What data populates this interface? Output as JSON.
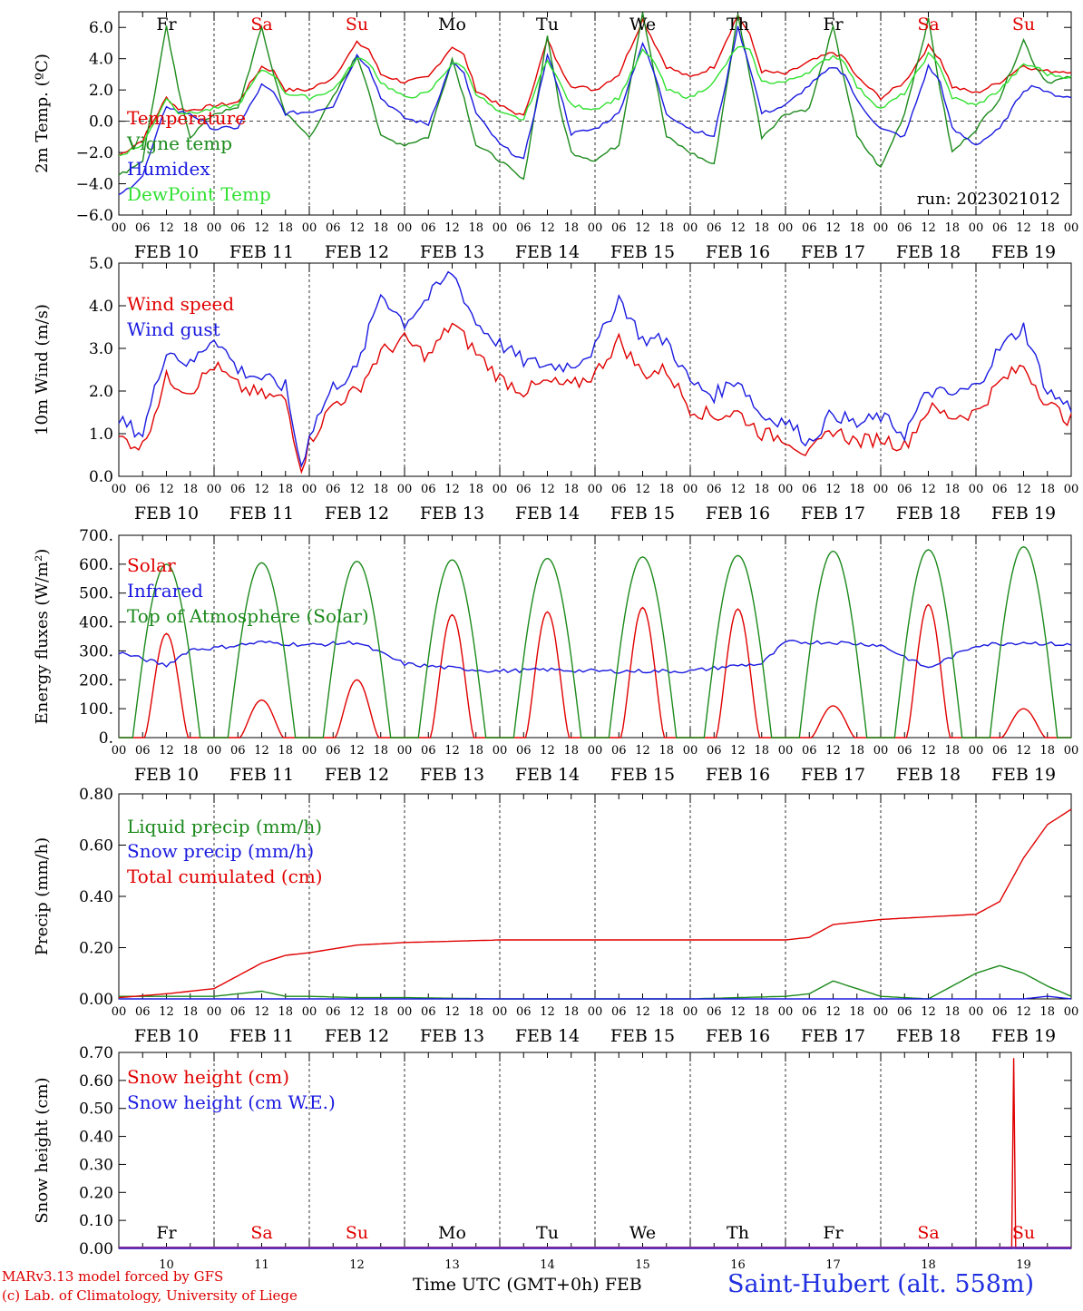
{
  "station": "Saint-Hubert (alt. 558m)",
  "credit_line1": "MARv3.13 model forced by GFS",
  "credit_line2": "(c) Lab. of Climatology, University of Liege",
  "xaxis_title": "Time UTC (GMT+0h) FEB",
  "run_label": "run: 2023021012",
  "colors": {
    "red": "#e00000",
    "green": "#1c8a1c",
    "blue": "#1a1ae0",
    "lightgreen": "#30e030",
    "weekend": "#e00000",
    "weekday": "#000000"
  },
  "hour_ticks": [
    "00",
    "06",
    "12",
    "18"
  ],
  "date_labels": [
    "FEB 10",
    "FEB 11",
    "FEB 12",
    "FEB 13",
    "FEB 14",
    "FEB 15",
    "FEB 16",
    "FEB 17",
    "FEB 18",
    "FEB 19"
  ],
  "day_labels": [
    {
      "label": "Fr",
      "weekend": false
    },
    {
      "label": "Sa",
      "weekend": true
    },
    {
      "label": "Su",
      "weekend": true
    },
    {
      "label": "Mo",
      "weekend": false
    },
    {
      "label": "Tu",
      "weekend": false
    },
    {
      "label": "We",
      "weekend": false
    },
    {
      "label": "Th",
      "weekend": false
    },
    {
      "label": "Fr",
      "weekend": false
    },
    {
      "label": "Sa",
      "weekend": true
    },
    {
      "label": "Su",
      "weekend": true
    }
  ],
  "day_numbers": [
    "10",
    "11",
    "12",
    "13",
    "14",
    "15",
    "16",
    "17",
    "18",
    "19"
  ],
  "chart_data": [
    {
      "type": "line",
      "ylabel": "2m Temp. (ºC)",
      "ylim": [
        -6,
        7
      ],
      "yticks": [
        "−6.0",
        "−4.0",
        "−2.0",
        "0.0",
        "2.0",
        "4.0",
        "6.0"
      ],
      "ytick_values": [
        -6,
        -4,
        -2,
        0,
        2,
        4,
        6
      ],
      "zero_line": true,
      "x_hours": [
        0,
        6,
        12,
        15,
        18,
        24,
        30,
        36,
        39,
        42,
        48,
        54,
        60,
        63,
        66,
        72,
        78,
        84,
        87,
        90,
        96,
        102,
        108,
        111,
        114,
        120,
        126,
        132,
        135,
        138,
        144,
        150,
        156,
        159,
        162,
        168,
        174,
        180,
        183,
        186,
        192,
        198,
        204,
        207,
        210,
        216,
        222,
        228,
        231,
        234,
        240
      ],
      "series": [
        {
          "name": "Temperature",
          "color": "red",
          "values": [
            -2.2,
            -1.2,
            1.5,
            0.8,
            0.7,
            1.0,
            1.2,
            3.5,
            3.2,
            2.0,
            2.0,
            2.8,
            5.0,
            4.6,
            3.0,
            2.5,
            2.8,
            4.8,
            4.2,
            2.0,
            1.0,
            0.3,
            5.2,
            3.5,
            2.3,
            2.0,
            3.0,
            6.5,
            5.0,
            3.5,
            2.8,
            3.5,
            6.8,
            5.5,
            3.2,
            3.0,
            3.8,
            4.4,
            4.0,
            2.8,
            1.5,
            2.5,
            4.8,
            4.0,
            2.2,
            1.8,
            2.5,
            3.6,
            3.3,
            3.2,
            3.2
          ]
        },
        {
          "name": "Vigne temp",
          "color": "green",
          "values": [
            -3.5,
            -2.5,
            6.0,
            2.0,
            -1.0,
            0.5,
            0.8,
            6.0,
            3.0,
            0.5,
            -1.0,
            1.5,
            4.2,
            2.0,
            -1.0,
            -1.5,
            -1.0,
            4.0,
            1.5,
            -1.5,
            -2.5,
            -3.8,
            5.5,
            1.0,
            -2.0,
            -2.5,
            -1.5,
            7.0,
            3.0,
            -1.0,
            -2.0,
            -2.8,
            6.8,
            3.0,
            -1.0,
            0.5,
            0.8,
            6.0,
            2.5,
            -1.0,
            -3.0,
            0.5,
            6.5,
            2.0,
            -2.0,
            -0.5,
            1.5,
            5.2,
            3.5,
            2.5,
            2.8
          ]
        },
        {
          "name": "Humidex",
          "color": "blue",
          "values": [
            -4.8,
            -3.5,
            1.0,
            0.6,
            0.5,
            -0.5,
            -0.4,
            2.3,
            1.8,
            0.5,
            0.6,
            1.0,
            4.2,
            3.5,
            1.5,
            0.2,
            -0.2,
            3.8,
            3.0,
            0.5,
            -1.5,
            -2.5,
            4.2,
            2.0,
            -0.8,
            -0.5,
            0.5,
            5.0,
            3.0,
            0.5,
            -0.5,
            -1.0,
            6.0,
            3.5,
            0.5,
            1.0,
            2.3,
            3.5,
            3.0,
            1.3,
            -0.5,
            -1.0,
            3.5,
            2.5,
            -0.5,
            -1.5,
            -0.5,
            2.0,
            2.3,
            1.8,
            1.5
          ]
        },
        {
          "name": "DewPoint Temp",
          "color": "lightgreen",
          "values": [
            -2.2,
            -1.5,
            1.5,
            0.6,
            0.5,
            0.8,
            1.0,
            3.3,
            3.0,
            1.8,
            1.5,
            2.0,
            4.0,
            3.8,
            2.5,
            1.5,
            1.8,
            3.7,
            3.5,
            1.8,
            0.5,
            0.1,
            4.0,
            2.5,
            1.0,
            0.8,
            1.5,
            4.5,
            3.8,
            2.0,
            1.5,
            2.5,
            4.8,
            4.5,
            2.5,
            2.5,
            3.2,
            4.2,
            3.8,
            2.2,
            0.8,
            1.8,
            4.3,
            3.5,
            1.5,
            1.0,
            2.0,
            3.6,
            3.5,
            3.0,
            2.8
          ]
        }
      ]
    },
    {
      "type": "line",
      "ylabel": "10m Wind (m/s)",
      "ylim": [
        0,
        5
      ],
      "yticks": [
        "0.0",
        "1.0",
        "2.0",
        "3.0",
        "4.0",
        "5.0"
      ],
      "ytick_values": [
        0,
        1,
        2,
        3,
        4,
        5
      ],
      "x_hours": [
        0,
        6,
        12,
        18,
        24,
        30,
        36,
        42,
        46,
        48,
        54,
        60,
        66,
        72,
        78,
        84,
        90,
        96,
        102,
        108,
        114,
        120,
        126,
        132,
        138,
        144,
        150,
        156,
        162,
        168,
        174,
        180,
        186,
        192,
        198,
        204,
        210,
        216,
        222,
        228,
        234,
        240
      ],
      "series": [
        {
          "name": "Wind speed",
          "color": "red",
          "values": [
            0.9,
            0.7,
            2.3,
            2.0,
            2.6,
            2.1,
            1.9,
            1.8,
            0.2,
            0.8,
            1.7,
            2.0,
            2.9,
            3.2,
            2.8,
            3.6,
            2.9,
            2.3,
            2.0,
            2.2,
            2.1,
            2.4,
            3.2,
            2.4,
            2.5,
            1.6,
            1.4,
            1.5,
            1.0,
            0.9,
            0.5,
            1.1,
            0.8,
            0.9,
            0.7,
            1.6,
            1.4,
            1.5,
            2.2,
            2.6,
            1.7,
            1.3
          ]
        },
        {
          "name": "Wind gust",
          "color": "blue",
          "values": [
            1.3,
            1.0,
            3.0,
            2.6,
            3.3,
            2.5,
            2.3,
            2.1,
            0.2,
            1.0,
            2.1,
            2.5,
            4.3,
            3.6,
            4.2,
            4.8,
            3.6,
            3.1,
            2.7,
            2.6,
            2.6,
            3.0,
            4.2,
            3.2,
            3.2,
            2.2,
            1.9,
            2.3,
            1.4,
            1.3,
            0.8,
            1.5,
            1.2,
            1.4,
            1.0,
            2.0,
            1.9,
            2.1,
            3.0,
            3.5,
            2.0,
            1.6
          ]
        }
      ]
    },
    {
      "type": "line",
      "ylabel": "Energy fluxes (W/m²)",
      "ylim": [
        0,
        700
      ],
      "yticks": [
        "0.",
        "100.",
        "200.",
        "300.",
        "400.",
        "500.",
        "600.",
        "700."
      ],
      "ytick_values": [
        0,
        100,
        200,
        300,
        400,
        500,
        600,
        700
      ],
      "series": [
        {
          "name": "Solar",
          "color": "red",
          "daily_peaks": [
            360,
            130,
            200,
            425,
            435,
            450,
            445,
            110,
            460,
            100
          ]
        },
        {
          "name": "Infrared",
          "color": "blue",
          "x_hours": [
            0,
            12,
            18,
            24,
            36,
            48,
            60,
            72,
            84,
            96,
            108,
            120,
            144,
            156,
            162,
            168,
            180,
            192,
            204,
            216,
            228,
            240
          ],
          "values": [
            295,
            250,
            305,
            310,
            330,
            320,
            330,
            255,
            240,
            230,
            235,
            230,
            230,
            250,
            255,
            330,
            330,
            320,
            240,
            320,
            330,
            320
          ]
        },
        {
          "name": "Top of Atmosphere (Solar)",
          "color": "green",
          "daily_peaks": [
            600,
            605,
            610,
            615,
            620,
            625,
            630,
            645,
            650,
            660
          ]
        }
      ]
    },
    {
      "type": "line",
      "ylabel": "Precip (mm/h)",
      "ylim": [
        0,
        0.8
      ],
      "yticks": [
        "0.00",
        "0.20",
        "0.40",
        "0.60",
        "0.80"
      ],
      "ytick_values": [
        0,
        0.2,
        0.4,
        0.6,
        0.8
      ],
      "x_hours": [
        0,
        12,
        24,
        30,
        36,
        42,
        48,
        60,
        72,
        96,
        120,
        144,
        168,
        174,
        180,
        192,
        204,
        216,
        222,
        228,
        234,
        240
      ],
      "series": [
        {
          "name": "Liquid precip (mm/h)",
          "color": "green",
          "values": [
            0.01,
            0.01,
            0.01,
            0.02,
            0.03,
            0.01,
            0.01,
            0.005,
            0.005,
            0,
            0,
            0,
            0.01,
            0.02,
            0.07,
            0.01,
            0,
            0.1,
            0.13,
            0.1,
            0.05,
            0.01
          ]
        },
        {
          "name": "Snow precip (mm/h)",
          "color": "blue",
          "values": [
            0,
            0,
            0,
            0,
            0,
            0,
            0,
            0,
            0,
            0,
            0,
            0,
            0,
            0,
            0,
            0,
            0,
            0,
            0,
            0,
            0.01,
            0
          ]
        },
        {
          "name": "Total cumulated (cm)",
          "color": "red",
          "values": [
            0.005,
            0.02,
            0.04,
            0.09,
            0.14,
            0.17,
            0.18,
            0.21,
            0.22,
            0.23,
            0.23,
            0.23,
            0.23,
            0.24,
            0.29,
            0.31,
            0.32,
            0.33,
            0.38,
            0.55,
            0.68,
            0.74
          ]
        }
      ]
    },
    {
      "type": "line",
      "ylabel": "Snow height (cm)",
      "ylim": [
        0,
        0.7
      ],
      "yticks": [
        "0.00",
        "0.10",
        "0.20",
        "0.30",
        "0.40",
        "0.50",
        "0.60",
        "0.70"
      ],
      "ytick_values": [
        0,
        0.1,
        0.2,
        0.3,
        0.4,
        0.5,
        0.6,
        0.7
      ],
      "series": [
        {
          "name": "Snow height (cm)",
          "color": "red",
          "x_hours": [
            0,
            225,
            225.5,
            226,
            240
          ],
          "values": [
            0,
            0,
            0.68,
            0,
            0
          ]
        },
        {
          "name": "Snow height (cm W.E.)",
          "color": "blue",
          "x_hours": [
            0,
            240
          ],
          "values": [
            0,
            0
          ]
        }
      ]
    }
  ]
}
